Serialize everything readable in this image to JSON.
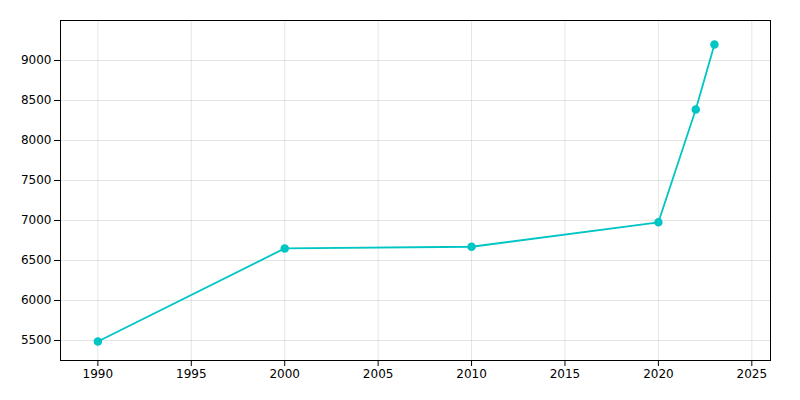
{
  "chart_data": {
    "type": "line",
    "x": [
      1990,
      2000,
      2010,
      2020,
      2022,
      2023
    ],
    "values": [
      5488,
      6651,
      6672,
      6977,
      8388,
      9200
    ],
    "color": "#00C5C5",
    "marker": "circle",
    "xlim": [
      1988,
      2026
    ],
    "ylim": [
      5250,
      9500
    ],
    "xticks": [
      1990,
      1995,
      2000,
      2005,
      2010,
      2015,
      2020,
      2025
    ],
    "yticks": [
      5500,
      6000,
      6500,
      7000,
      7500,
      8000,
      8500,
      9000
    ],
    "grid": true
  }
}
